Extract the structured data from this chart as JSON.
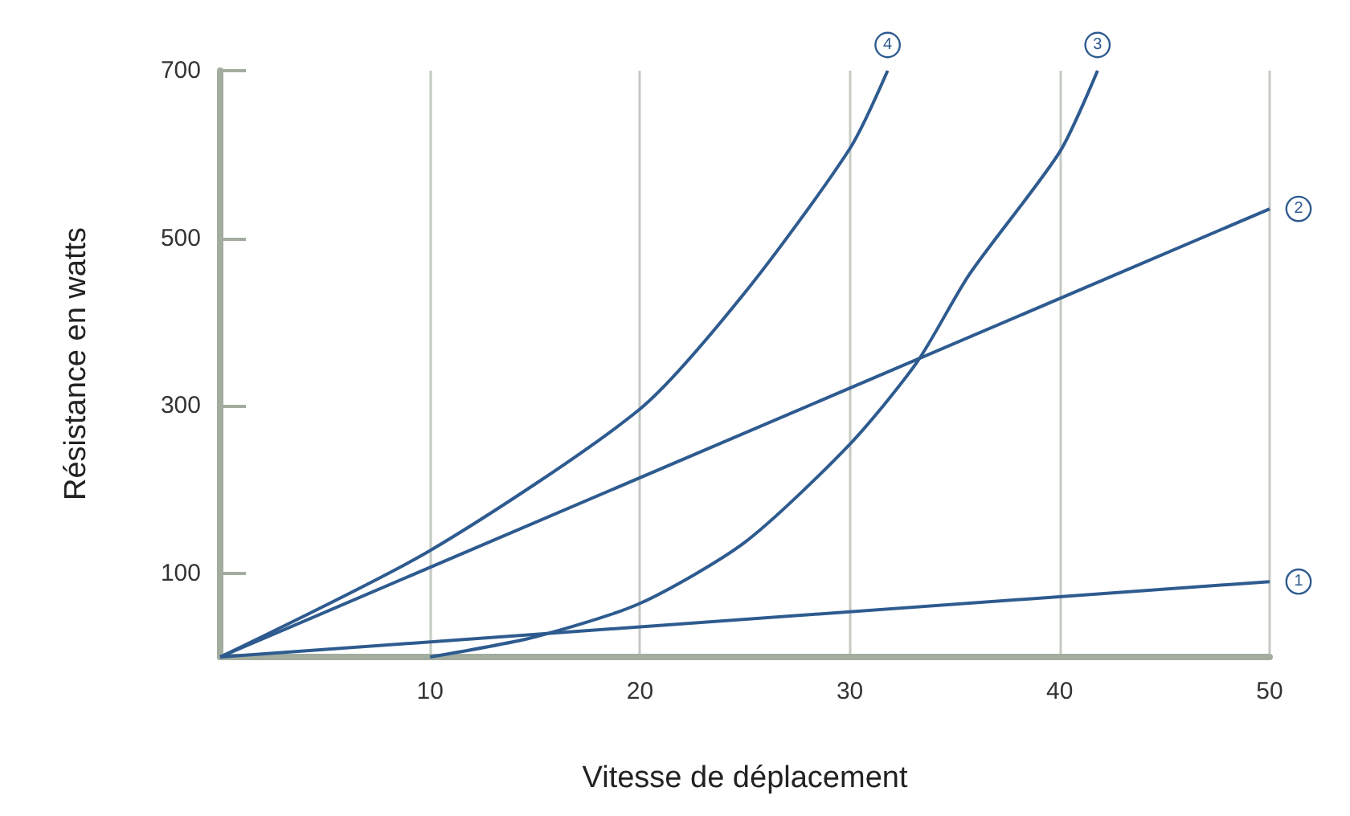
{
  "chart_data": {
    "type": "line",
    "xlabel": "Vitesse de déplacement",
    "ylabel": "Résistance en watts",
    "xlim": [
      0,
      50
    ],
    "xticks": [
      10,
      20,
      30,
      40,
      50
    ],
    "ylim": [
      0,
      700
    ],
    "yticks": [
      100,
      300,
      500,
      700
    ],
    "grid": "x",
    "legend": false,
    "line_style": "solid",
    "series": [
      {
        "name": "1",
        "color": "#2e5b8f",
        "x": [
          0,
          50
        ],
        "values": [
          0,
          90
        ]
      },
      {
        "name": "2",
        "color": "#2e5b8f",
        "x": [
          0,
          50
        ],
        "values": [
          0,
          535
        ]
      },
      {
        "name": "3",
        "color": "#2e5b8f",
        "x": [
          10,
          15,
          20,
          25,
          30,
          33.2,
          35.7,
          40,
          41.8
        ],
        "values": [
          0,
          24,
          64,
          137,
          254,
          352,
          457,
          603,
          700
        ]
      },
      {
        "name": "4",
        "color": "#2e5b8f",
        "x": [
          0,
          10,
          20,
          25,
          30,
          31.8
        ],
        "values": [
          0,
          127,
          296,
          435,
          607,
          700
        ]
      }
    ]
  }
}
